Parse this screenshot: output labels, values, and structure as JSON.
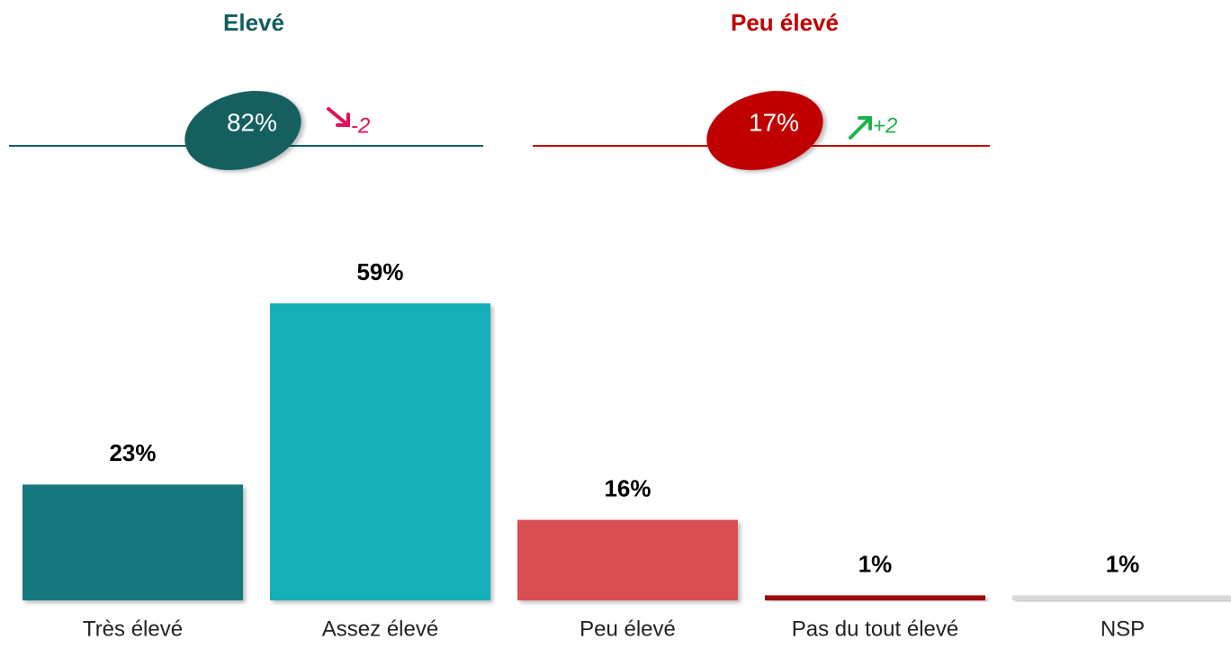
{
  "chart_data": {
    "type": "bar",
    "categories": [
      "Très élevé",
      "Assez élevé",
      "Peu élevé",
      "Pas du tout élevé",
      "NSP"
    ],
    "values": [
      23,
      59,
      16,
      1,
      1
    ],
    "value_labels": [
      "23%",
      "59%",
      "16%",
      "1%",
      "1%"
    ],
    "colors": [
      "#12777e",
      "#13b0b8",
      "#d94f51",
      "#9b0a0b",
      "#d9d9d9"
    ],
    "summaries": [
      {
        "title": "Elevé",
        "value": 82,
        "value_label": "82%",
        "change": -2,
        "color": "#135e5f",
        "change_color": "#e0105a"
      },
      {
        "title": "Peu élevé",
        "value": 17,
        "value_label": "17%",
        "change": 2,
        "change_label": "+2",
        "color": "#c00000",
        "change_color": "#1db34a"
      }
    ]
  }
}
